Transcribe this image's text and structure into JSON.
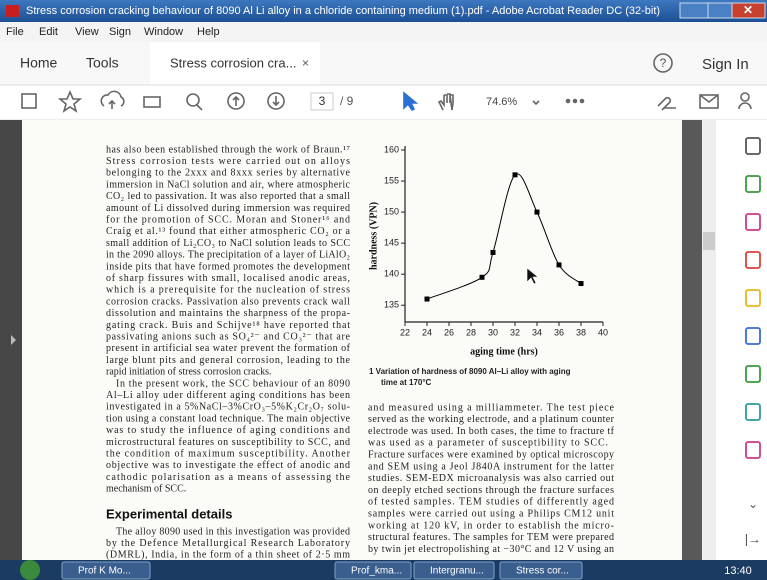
{
  "window": {
    "title": "Stress corrosion cracking behaviour of 8090 Al Li alloy in a chloride containing medium (1).pdf - Adobe Acrobat Reader DC (32-bit)"
  },
  "menu": [
    "File",
    "Edit",
    "View",
    "Sign",
    "Window",
    "Help"
  ],
  "tabs": {
    "home": "Home",
    "tools": "Tools",
    "document": "Stress corrosion cra...",
    "sign_in": "Sign In"
  },
  "toolbar": {
    "page": "3",
    "page_count": "/ 9",
    "zoom": "74.6%"
  },
  "document": {
    "left_column": [
      "has also been established through the work of Braun.¹⁷",
      "Stress corrosion tests were carried out on alloys",
      "belonging to the 2xxx and 8xxx series by alternative",
      "immersion in NaCl solution and air, where atmospheric",
      "CO₂ led to passivation. It was also reported that a small",
      "amount of Li dissolved during immersion was required",
      "for the promotion of SCC. Moran and Stoner¹⁶ and",
      "Craig et al.¹³ found that either atmospheric CO₂ or a",
      "small addition of Li₂CO₃ to NaCl solution leads to SCC",
      "in the 2090 alloys. The precipitation of a layer of LiAlO₂",
      "inside pits that have formed promotes the development",
      "of sharp fissures with small, localised anodic areas,",
      "which is a prerequisite for the nucleation of stress",
      "corrosion cracks. Passivation also prevents crack wall",
      "dissolution and maintains the sharpness of the propa-",
      "gating crack. Buis and Schijve¹⁸ have reported that",
      "passivating anions such as SO₄²⁻ and CO₃²⁻ that are",
      "present in artificial sea water prevent the formation of",
      "large blunt pits and general corrosion, leading to the",
      "rapid initiation of stress corrosion cracks.",
      "In the present work, the SCC behaviour of an 8090",
      "Al–Li alloy uder different aging conditions has been",
      "investigated in a 5%NaCl–3%CrO₃–5%K₂Cr₂O₇ solu-",
      "tion using a constant load technique. The main objective",
      "was to study the influence of aging conditions and",
      "microstructural features on susceptibility to SCC, and",
      "the condition of maximum susceptibility. Another",
      "objective was to investigate the effect of anodic and",
      "cathodic polarisation as a means of assessing the",
      "mechanism of SCC."
    ],
    "heading": "Experimental details",
    "left_column_2": [
      "The alloy 8090 used in this investigation was provided",
      "by the Defence Metallurgical Research Laboratory",
      "(DMRL), India, in the form of a thin sheet of 2·5 mm"
    ],
    "caption": [
      "1  Variation of hardness of 8090 Al–Li alloy with aging",
      "time at 170°C"
    ],
    "right_column": [
      "and measured using a milliammeter. The test piece",
      "served as the working electrode, and a platinum counter",
      "electrode was used. In both cases, the time to fracture tf",
      "was used as a parameter of susceptibility to SCC.",
      "Fracture surfaces were examined by optical microscopy",
      "and SEM using a Jeol J840A instrument for the latter",
      "studies. SEM-EDX microanalysis was also carried out",
      "on deeply etched sections through the fracture surfaces",
      "of tested samples. TEM studies of differently aged",
      "samples were carried out using a Philips CM12 unit",
      "working at 120 kV, in order to establish the micro-",
      "structural features. The samples for TEM were prepared",
      "by twin jet electropolishing at −30°C and 12 V using an"
    ]
  },
  "chart_data": {
    "type": "line",
    "x_label": "aging time (hrs)",
    "y_label": "hardness (VPN)",
    "x": [
      24,
      29,
      30,
      32,
      34,
      36,
      38
    ],
    "values": [
      136,
      139.5,
      143.5,
      156,
      150,
      141.5,
      138.5
    ],
    "color": "#000000",
    "xlim": [
      22,
      40
    ],
    "xticks": [
      22,
      24,
      26,
      28,
      30,
      32,
      34,
      36,
      38,
      40
    ],
    "ylim": [
      132.3,
      160
    ],
    "yticks": [
      135,
      140,
      145,
      150,
      155,
      160
    ]
  },
  "taskbar": {
    "items": [
      "Prof K Mo...",
      "Prof_kma...",
      "Intergranu...",
      "Stress cor..."
    ],
    "clock": "13:40"
  }
}
